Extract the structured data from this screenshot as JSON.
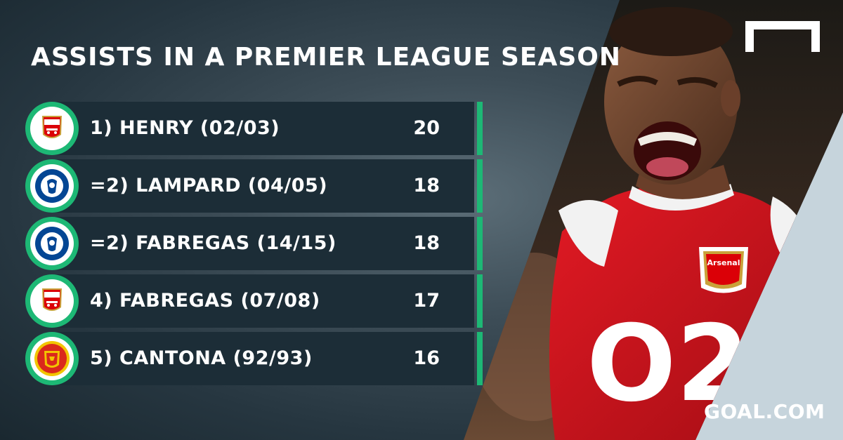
{
  "title": "ASSISTS IN A PREMIER LEAGUE SEASON",
  "colors": {
    "accent": "#1db875",
    "row_bg": "#1c2d37",
    "arsenal_red": "#db0007",
    "chelsea_blue": "#034694",
    "united_red": "#da291c"
  },
  "rows": [
    {
      "club": "arsenal",
      "club_name": "Arsenal",
      "label": "1) HENRY (02/03)",
      "value": "20"
    },
    {
      "club": "chelsea",
      "club_name": "CHELSEA",
      "label": "=2) LAMPARD (04/05)",
      "value": "18"
    },
    {
      "club": "chelsea",
      "club_name": "CHELSEA",
      "label": "=2) FABREGAS (14/15)",
      "value": "18"
    },
    {
      "club": "arsenal",
      "club_name": "Arsenal",
      "label": "4) FABREGAS (07/08)",
      "value": "17"
    },
    {
      "club": "manutd",
      "club_name": "MANCHESTER UNITED",
      "label": "5) CANTONA (92/93)",
      "value": "16"
    }
  ],
  "photo": {
    "shirt_text": "O2",
    "crest_text": "Arsenal"
  },
  "brand": "GOAL.COM",
  "icons": {
    "logo": "goal-post-icon",
    "crests": [
      "arsenal-crest-icon",
      "chelsea-crest-icon",
      "manutd-crest-icon"
    ]
  }
}
